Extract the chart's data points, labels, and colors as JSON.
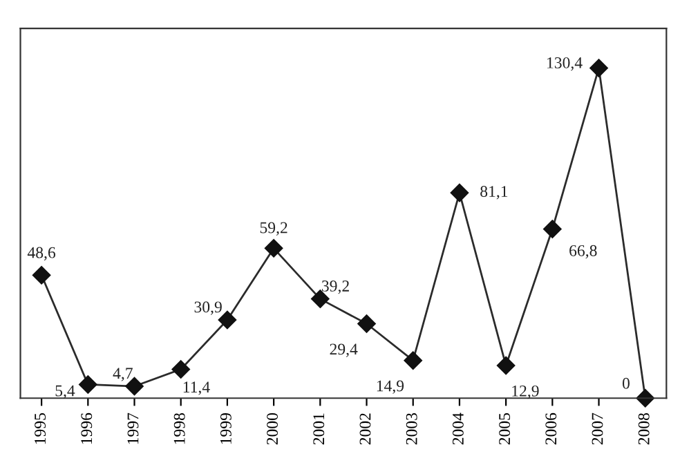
{
  "chart_data": {
    "type": "line",
    "categories": [
      "1995",
      "1996",
      "1997",
      "1998",
      "1999",
      "2000",
      "2001",
      "2002",
      "2003",
      "2004",
      "2005",
      "2006",
      "2007",
      "2008"
    ],
    "series": [
      {
        "color": "#2b2b2b",
        "values": [
          48.6,
          5.4,
          4.7,
          11.4,
          30.9,
          59.2,
          39.2,
          29.4,
          14.9,
          81.1,
          12.9,
          66.8,
          130.4,
          0
        ],
        "value_labels": [
          "48,6",
          "5,4",
          "4,7",
          "11,4",
          "30,9",
          "59,2",
          "39,2",
          "29,4",
          "14,9",
          "81,1",
          "12,9",
          "66,8",
          "130,4",
          "0"
        ]
      }
    ],
    "marker": "diamond",
    "line_style": "solid",
    "grid": false,
    "tick_labels": "x"
  }
}
